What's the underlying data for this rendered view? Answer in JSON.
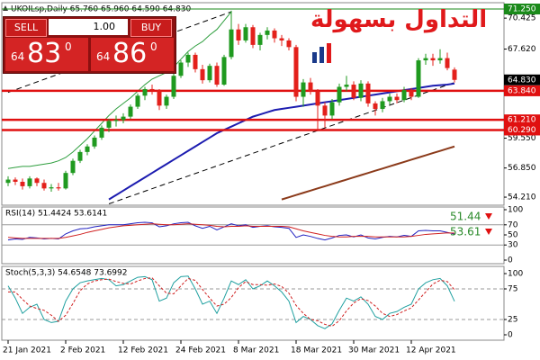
{
  "trade_panel": {
    "sell": "SELL",
    "buy": "BUY",
    "lot": "1.00",
    "sell_price": {
      "prefix": "64",
      "big": "83",
      "sup": "0"
    },
    "buy_price": {
      "prefix": "64",
      "big": "86",
      "sup": "0"
    }
  },
  "logo_text": "التداول بسهولة",
  "chart_data": [
    {
      "type": "candlestick",
      "title": "UKOILsp,Daily  65.760 65.960 64.590 64.830",
      "categories": [
        "21 Jan 2021",
        null,
        null,
        null,
        null,
        null,
        null,
        null,
        "2 Feb 2021",
        null,
        null,
        null,
        null,
        null,
        null,
        null,
        "12 Feb 2021",
        null,
        null,
        null,
        null,
        null,
        null,
        null,
        "24 Feb 2021",
        null,
        null,
        null,
        null,
        null,
        null,
        null,
        "8 Mar 2021",
        null,
        null,
        null,
        null,
        null,
        null,
        null,
        "18 Mar 2021",
        null,
        null,
        null,
        null,
        null,
        null,
        null,
        "30 Mar 2021",
        null,
        null,
        null,
        null,
        null,
        null,
        null,
        "12 Apr 2021",
        null,
        null,
        null,
        null,
        null,
        null
      ],
      "open": [
        55.5,
        55.8,
        55.6,
        55.2,
        55.9,
        55.5,
        55.0,
        55.1,
        55.0,
        56.4,
        57.5,
        58.3,
        58.8,
        59.6,
        60.5,
        61.1,
        61.2,
        61.5,
        62.4,
        63.4,
        64.0,
        63.9,
        62.5,
        63.3,
        65.2,
        66.4,
        67.1,
        65.8,
        64.8,
        66.1,
        64.4,
        66.9,
        69.4,
        68.4,
        69.6,
        68.0,
        68.9,
        69.3,
        68.6,
        68.4,
        67.8,
        63.3,
        64.6,
        63.8,
        62.5,
        61.6,
        62.8,
        64.2,
        64.4,
        63.2,
        64.5,
        62.7,
        62.2,
        62.9,
        63.3,
        63.0,
        63.9,
        63.3,
        66.6,
        66.8,
        66.6,
        66.8,
        65.76
      ],
      "high": [
        56.1,
        56.0,
        55.9,
        56.1,
        56.0,
        55.8,
        55.4,
        55.5,
        56.6,
        57.7,
        58.5,
        59.0,
        59.8,
        60.7,
        61.3,
        61.6,
        61.8,
        62.6,
        63.6,
        64.2,
        64.4,
        64.0,
        63.5,
        65.4,
        66.6,
        67.3,
        67.3,
        66.2,
        66.3,
        66.4,
        67.1,
        71.1,
        69.9,
        69.9,
        69.8,
        69.1,
        69.6,
        69.5,
        68.9,
        68.6,
        68.0,
        64.9,
        65.0,
        64.0,
        62.8,
        63.1,
        64.5,
        65.2,
        64.7,
        64.8,
        64.7,
        62.9,
        63.2,
        63.6,
        63.6,
        64.2,
        64.1,
        66.8,
        67.2,
        67.2,
        67.6,
        67.3,
        65.96
      ],
      "low": [
        55.2,
        55.3,
        54.9,
        55.0,
        55.2,
        54.8,
        54.7,
        54.8,
        54.9,
        56.2,
        57.3,
        58.0,
        58.6,
        59.4,
        60.1,
        60.6,
        60.9,
        61.3,
        62.2,
        63.0,
        63.5,
        62.1,
        62.2,
        63.1,
        65.0,
        66.0,
        65.5,
        64.5,
        64.6,
        64.2,
        64.3,
        66.7,
        68.0,
        68.2,
        67.7,
        67.5,
        68.5,
        68.2,
        67.9,
        67.5,
        62.9,
        62.4,
        63.5,
        60.3,
        60.5,
        61.3,
        62.5,
        63.8,
        63.0,
        62.9,
        62.4,
        61.6,
        61.9,
        62.6,
        62.7,
        62.8,
        63.0,
        63.2,
        66.2,
        66.1,
        66.3,
        65.7,
        64.59
      ],
      "close": [
        55.8,
        55.6,
        55.2,
        55.9,
        55.5,
        55.0,
        55.1,
        55.0,
        56.4,
        57.5,
        58.3,
        58.8,
        59.6,
        60.5,
        61.1,
        61.2,
        61.5,
        62.4,
        63.4,
        64.0,
        63.9,
        62.5,
        63.3,
        65.2,
        66.4,
        67.1,
        65.8,
        64.8,
        66.1,
        64.4,
        66.9,
        69.4,
        68.4,
        69.6,
        68.0,
        68.9,
        69.3,
        68.6,
        68.4,
        67.8,
        63.3,
        64.6,
        63.8,
        62.5,
        61.6,
        62.8,
        64.2,
        64.4,
        63.2,
        64.5,
        62.7,
        62.2,
        62.9,
        63.3,
        63.0,
        63.9,
        63.3,
        66.6,
        66.8,
        66.6,
        66.8,
        65.9,
        64.83
      ],
      "up_color": "#1f9a1f",
      "down_color": "#e3201b",
      "ylim": [
        53.48,
        71.74
      ],
      "yticks": [
        {
          "value": 54.21,
          "label": "54.210"
        },
        {
          "value": 56.85,
          "label": "56.850"
        },
        {
          "value": 59.55,
          "label": "59.550"
        },
        {
          "value": 67.62,
          "label": "67.620"
        },
        {
          "value": 70.425,
          "label": "70.425"
        }
      ],
      "overlays": [
        {
          "color": "#2e9e3e",
          "values": [
            56.8,
            56.9,
            57.0,
            57.0,
            57.1,
            57.2,
            57.3,
            57.5,
            57.8,
            58.3,
            58.9,
            59.5,
            60.2,
            60.9,
            61.6,
            62.2,
            62.7,
            63.2,
            63.8,
            64.4,
            64.9,
            65.2,
            65.5,
            66.0,
            66.7,
            67.4,
            67.9,
            68.3,
            68.9,
            69.4,
            70.2,
            71.0,
            null,
            null,
            null,
            null,
            null,
            null,
            null,
            null,
            null,
            null,
            null,
            null,
            null,
            null,
            null,
            null,
            null,
            null,
            null,
            null,
            null,
            null,
            null,
            null,
            null,
            null,
            null,
            null,
            null,
            null,
            null
          ]
        },
        {
          "color": "#1c1cb0",
          "values": [
            null,
            null,
            null,
            null,
            null,
            null,
            null,
            null,
            null,
            null,
            null,
            null,
            null,
            null,
            54.0,
            54.4,
            54.8,
            55.2,
            55.6,
            56.0,
            56.4,
            56.8,
            57.2,
            57.6,
            58.0,
            58.4,
            58.8,
            59.2,
            59.6,
            60.0,
            60.3,
            60.6,
            60.9,
            61.2,
            61.5,
            61.7,
            61.9,
            62.1,
            62.2,
            62.3,
            62.4,
            62.5,
            62.6,
            62.7,
            62.8,
            62.9,
            63.0,
            63.1,
            63.2,
            63.3,
            63.4,
            63.5,
            63.6,
            63.7,
            63.8,
            63.9,
            64.0,
            64.1,
            64.2,
            64.3,
            64.35,
            64.4,
            64.5
          ]
        },
        {
          "color": "#8b3a1a",
          "values": [
            null,
            null,
            null,
            null,
            null,
            null,
            null,
            null,
            null,
            null,
            null,
            null,
            null,
            null,
            null,
            null,
            null,
            null,
            null,
            null,
            null,
            null,
            null,
            null,
            null,
            null,
            null,
            null,
            null,
            null,
            null,
            null,
            null,
            null,
            null,
            null,
            null,
            null,
            54.0,
            54.2,
            54.4,
            54.6,
            54.8,
            55.0,
            55.2,
            55.4,
            55.6,
            55.8,
            56.0,
            56.2,
            56.4,
            56.6,
            56.8,
            57.0,
            57.2,
            57.4,
            57.6,
            57.8,
            58.0,
            58.2,
            58.4,
            58.6,
            58.8
          ]
        }
      ],
      "trendlines": [
        {
          "points": [
            [
              0,
              63.7
            ],
            [
              31,
              71.0
            ]
          ]
        },
        {
          "points": [
            [
              14,
              53.6
            ],
            [
              62,
              64.6
            ]
          ]
        }
      ],
      "price_tags": [
        {
          "value": 71.25,
          "label": "71.250",
          "color": "#1a8a1a",
          "line": true
        },
        {
          "value": 64.83,
          "label": "64.830",
          "color": "#000000",
          "line": false
        },
        {
          "value": 63.84,
          "label": "63.840",
          "color": "#e01010",
          "line": true
        },
        {
          "value": 61.21,
          "label": "61.210",
          "color": "#e01010",
          "line": true
        },
        {
          "value": 60.29,
          "label": "60.290",
          "color": "#e01010",
          "line": true
        }
      ]
    },
    {
      "type": "line",
      "title": "RSI(14) 51.4424 53.6141",
      "ylim": [
        0,
        100
      ],
      "yticks": [
        0,
        30,
        50,
        70,
        100
      ],
      "levels": [
        30,
        70
      ],
      "series": [
        {
          "color": "#2020c0",
          "dash": false,
          "values": [
            40,
            42,
            41,
            45,
            44,
            42,
            43,
            42,
            52,
            58,
            62,
            63,
            66,
            68,
            70,
            70,
            70,
            72,
            74,
            75,
            74,
            66,
            68,
            72,
            74,
            75,
            68,
            63,
            67,
            60,
            66,
            72,
            68,
            70,
            65,
            67,
            68,
            66,
            65,
            63,
            45,
            50,
            47,
            43,
            40,
            44,
            49,
            50,
            46,
            50,
            44,
            42,
            45,
            47,
            46,
            49,
            47,
            58,
            59,
            58,
            58,
            55,
            51.44
          ]
        },
        {
          "color": "#d02020",
          "dash": false,
          "values": [
            45,
            44,
            43,
            43,
            43,
            43,
            43,
            43,
            45,
            48,
            51,
            55,
            58,
            61,
            64,
            66,
            68,
            69,
            70,
            71,
            72,
            71,
            70,
            70,
            71,
            72,
            71,
            70,
            69,
            67,
            66,
            67,
            67,
            68,
            67,
            67,
            67,
            67,
            67,
            66,
            62,
            58,
            55,
            52,
            49,
            47,
            46,
            46,
            47,
            47,
            47,
            46,
            46,
            46,
            46,
            46,
            47,
            49,
            51,
            52,
            53,
            54,
            53.61
          ]
        }
      ],
      "markers": [
        {
          "value": 51.44,
          "color": "#2a8a2a"
        },
        {
          "value": 53.61,
          "color": "#2a8a2a"
        }
      ]
    },
    {
      "type": "line",
      "title": "Stoch(5,3,3) 54.6548 73.6992",
      "ylim": [
        0,
        100
      ],
      "yticks": [
        0,
        25,
        75,
        100
      ],
      "levels": [
        25,
        75
      ],
      "series": [
        {
          "color": "#20a0a0",
          "dash": false,
          "values": [
            80,
            60,
            35,
            45,
            50,
            25,
            20,
            22,
            55,
            75,
            85,
            88,
            90,
            92,
            90,
            80,
            82,
            88,
            94,
            95,
            90,
            55,
            60,
            85,
            95,
            96,
            75,
            50,
            55,
            35,
            60,
            88,
            82,
            90,
            75,
            80,
            88,
            80,
            70,
            55,
            20,
            30,
            25,
            15,
            10,
            18,
            40,
            60,
            55,
            62,
            50,
            30,
            25,
            35,
            38,
            45,
            50,
            75,
            85,
            90,
            92,
            80,
            54.65
          ]
        },
        {
          "color": "#d02020",
          "dash": true,
          "values": [
            70,
            70,
            58,
            47,
            43,
            40,
            32,
            22,
            32,
            51,
            72,
            83,
            88,
            90,
            91,
            87,
            84,
            83,
            88,
            92,
            93,
            80,
            68,
            67,
            80,
            92,
            89,
            74,
            60,
            47,
            50,
            61,
            77,
            87,
            82,
            82,
            81,
            83,
            79,
            68,
            48,
            35,
            25,
            23,
            17,
            14,
            23,
            39,
            52,
            59,
            56,
            47,
            35,
            30,
            33,
            39,
            44,
            57,
            70,
            83,
            89,
            87,
            73.7
          ]
        }
      ]
    }
  ]
}
